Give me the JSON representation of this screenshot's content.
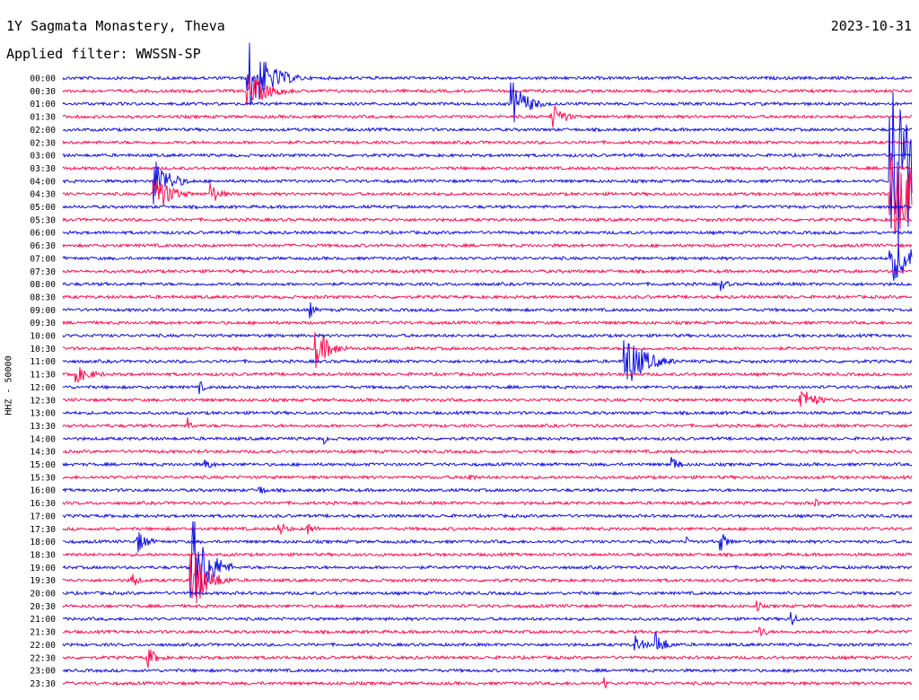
{
  "header": {
    "title": "1Y Sagmata Monastery, Theva",
    "date": "2023-10-31",
    "filter": "Applied filter: WWSSN-SP"
  },
  "axis": {
    "ylabel": "HHZ - 50000"
  },
  "colors": {
    "odd_trace": "#1010e0",
    "even_trace": "#ff1050",
    "text": "#000000"
  },
  "chart_data": {
    "type": "line",
    "title": "1Y Sagmata Monastery, Theva",
    "ylabel": "HHZ - 50000",
    "rows": [
      "00:00",
      "00:30",
      "01:00",
      "01:30",
      "02:00",
      "02:30",
      "03:00",
      "03:30",
      "04:00",
      "04:30",
      "05:00",
      "05:30",
      "06:00",
      "06:30",
      "07:00",
      "07:30",
      "08:00",
      "08:30",
      "09:00",
      "09:30",
      "10:00",
      "10:30",
      "11:00",
      "11:30",
      "12:00",
      "12:30",
      "13:00",
      "13:30",
      "14:00",
      "14:30",
      "15:00",
      "15:30",
      "16:00",
      "16:30",
      "17:00",
      "17:30",
      "18:00",
      "18:30",
      "19:00",
      "19:30",
      "20:00",
      "20:30",
      "21:00",
      "21:30",
      "22:00",
      "22:30",
      "23:00",
      "23:30"
    ],
    "series_colors": [
      "blue",
      "red"
    ],
    "events": [
      {
        "row": 0,
        "minute": 6.5,
        "amp": 48,
        "dur": 2
      },
      {
        "row": 1,
        "minute": 6.5,
        "amp": 22,
        "dur": 2
      },
      {
        "row": 2,
        "minute": 15.8,
        "amp": 30,
        "dur": 1.5
      },
      {
        "row": 3,
        "minute": 17.2,
        "amp": 20,
        "dur": 1.2
      },
      {
        "row": 8,
        "minute": 29.2,
        "amp": 120,
        "dur": 3
      },
      {
        "row": 9,
        "minute": 29.2,
        "amp": 60,
        "dur": 3
      },
      {
        "row": 14,
        "minute": 29.2,
        "amp": 30,
        "dur": 3
      },
      {
        "row": 8,
        "minute": 3.2,
        "amp": 30,
        "dur": 1.5
      },
      {
        "row": 9,
        "minute": 3.2,
        "amp": 28,
        "dur": 1.5
      },
      {
        "row": 9,
        "minute": 5.2,
        "amp": 14,
        "dur": 1
      },
      {
        "row": 16,
        "minute": 23.2,
        "amp": 10,
        "dur": 0.7
      },
      {
        "row": 18,
        "minute": 8.7,
        "amp": 12,
        "dur": 0.5
      },
      {
        "row": 21,
        "minute": 8.9,
        "amp": 24,
        "dur": 1.5
      },
      {
        "row": 22,
        "minute": 19.8,
        "amp": 36,
        "dur": 2
      },
      {
        "row": 23,
        "minute": 0.3,
        "amp": 12,
        "dur": 2
      },
      {
        "row": 24,
        "minute": 4.8,
        "amp": 9,
        "dur": 0.6
      },
      {
        "row": 25,
        "minute": 26,
        "amp": 16,
        "dur": 1.6
      },
      {
        "row": 27,
        "minute": 4.4,
        "amp": 10,
        "dur": 0.5
      },
      {
        "row": 28,
        "minute": 9.2,
        "amp": 7,
        "dur": 0.5
      },
      {
        "row": 30,
        "minute": 5.0,
        "amp": 9,
        "dur": 0.8
      },
      {
        "row": 30,
        "minute": 21.5,
        "amp": 11,
        "dur": 0.8
      },
      {
        "row": 31,
        "minute": 14.2,
        "amp": 7,
        "dur": 1
      },
      {
        "row": 32,
        "minute": 6.9,
        "amp": 7,
        "dur": 0.8
      },
      {
        "row": 33,
        "minute": 26.5,
        "amp": 8,
        "dur": 0.6
      },
      {
        "row": 35,
        "minute": 7.6,
        "amp": 9,
        "dur": 1
      },
      {
        "row": 35,
        "minute": 8.6,
        "amp": 10,
        "dur": 0.8
      },
      {
        "row": 36,
        "minute": 2.6,
        "amp": 16,
        "dur": 1
      },
      {
        "row": 36,
        "minute": 23.2,
        "amp": 14,
        "dur": 0.8
      },
      {
        "row": 36,
        "minute": 22.0,
        "amp": 7,
        "dur": 0.6
      },
      {
        "row": 38,
        "minute": 4.5,
        "amp": 70,
        "dur": 1.5
      },
      {
        "row": 39,
        "minute": 4.5,
        "amp": 45,
        "dur": 1.5
      },
      {
        "row": 39,
        "minute": 2.4,
        "amp": 12,
        "dur": 0.7
      },
      {
        "row": 41,
        "minute": 24.5,
        "amp": 9,
        "dur": 0.5
      },
      {
        "row": 42,
        "minute": 25.7,
        "amp": 14,
        "dur": 0.5
      },
      {
        "row": 43,
        "minute": 24.6,
        "amp": 8,
        "dur": 0.8
      },
      {
        "row": 44,
        "minute": 20.2,
        "amp": 12,
        "dur": 1
      },
      {
        "row": 44,
        "minute": 20.9,
        "amp": 18,
        "dur": 1
      },
      {
        "row": 45,
        "minute": 2.9,
        "amp": 16,
        "dur": 1
      },
      {
        "row": 46,
        "minute": 25.8,
        "amp": 5,
        "dur": 0.5
      },
      {
        "row": 47,
        "minute": 19.1,
        "amp": 12,
        "dur": 0.3
      }
    ]
  }
}
